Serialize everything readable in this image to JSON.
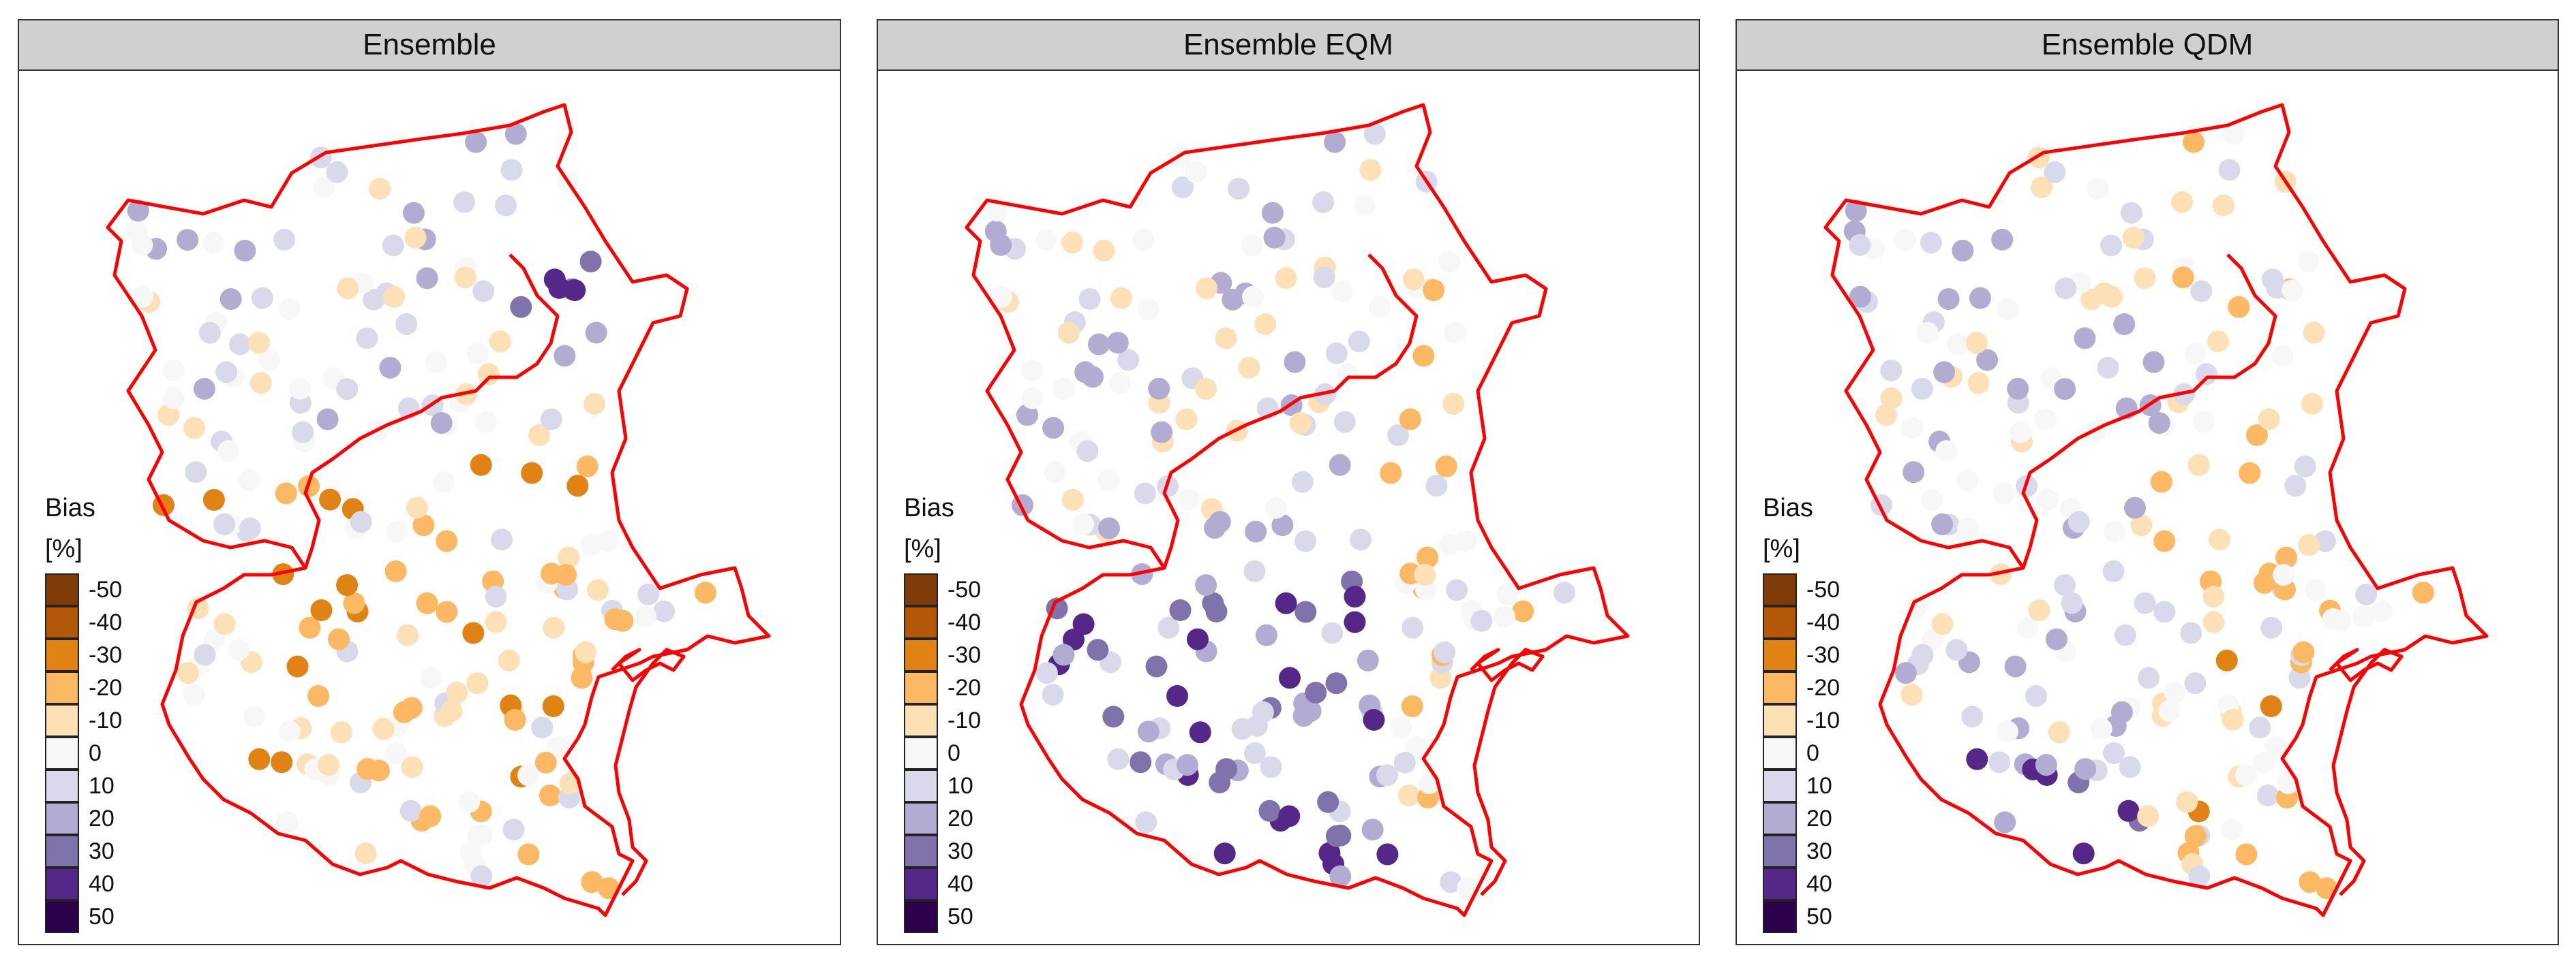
{
  "legend": {
    "title": "Bias",
    "unit": "[%]",
    "items": [
      {
        "label": "-50",
        "color": "#7f3b08"
      },
      {
        "label": "-40",
        "color": "#b35806"
      },
      {
        "label": "-30",
        "color": "#e08214"
      },
      {
        "label": "-20",
        "color": "#fdb863"
      },
      {
        "label": "-10",
        "color": "#fee0b6"
      },
      {
        "label": "0",
        "color": "#f7f7f7"
      },
      {
        "label": "10",
        "color": "#d8daeb"
      },
      {
        "label": "20",
        "color": "#b2abd2"
      },
      {
        "label": "30",
        "color": "#8073ac"
      },
      {
        "label": "40",
        "color": "#542788"
      },
      {
        "label": "50",
        "color": "#2d004b"
      }
    ]
  },
  "boundary_color": "#ff0000",
  "panels": [
    {
      "title": "Ensemble"
    },
    {
      "title": "Ensemble EQM"
    },
    {
      "title": "Ensemble QDM"
    }
  ]
}
